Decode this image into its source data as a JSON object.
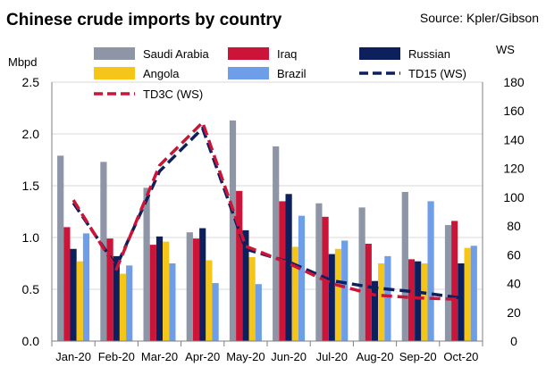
{
  "chart_data": {
    "type": "bar",
    "title": "Chinese crude imports by country",
    "source": "Source: Kpler/Gibson",
    "ylabel": "Mbpd",
    "y2label": "WS",
    "ylim": [
      0,
      2.5
    ],
    "y2lim": [
      0,
      180
    ],
    "yticks": [
      "0.0",
      "0.5",
      "1.0",
      "1.5",
      "2.0",
      "2.5"
    ],
    "y2ticks": [
      "0",
      "20",
      "40",
      "60",
      "80",
      "100",
      "120",
      "140",
      "160",
      "180"
    ],
    "grid": "horizontal",
    "legend_position": "top",
    "categories": [
      "Jan-20",
      "Feb-20",
      "Mar-20",
      "Apr-20",
      "May-20",
      "Jun-20",
      "Jul-20",
      "Aug-20",
      "Sep-20",
      "Oct-20"
    ],
    "series": [
      {
        "name": "Saudi Arabia",
        "color": "#8d95a6",
        "values": [
          1.79,
          1.73,
          1.48,
          1.05,
          2.13,
          1.88,
          1.33,
          1.29,
          1.44,
          1.12
        ]
      },
      {
        "name": "Iraq",
        "color": "#cc1439",
        "values": [
          1.1,
          0.99,
          0.93,
          0.99,
          1.45,
          1.35,
          1.2,
          0.94,
          0.79,
          1.16
        ]
      },
      {
        "name": "Russian",
        "color": "#0d1f5c",
        "values": [
          0.89,
          0.82,
          1.01,
          1.09,
          1.07,
          1.42,
          0.84,
          0.58,
          0.77,
          0.75
        ]
      },
      {
        "name": "Angola",
        "color": "#f5c518",
        "values": [
          0.77,
          0.65,
          0.96,
          0.78,
          0.81,
          0.91,
          0.89,
          0.75,
          0.75,
          0.9
        ]
      },
      {
        "name": "Brazil",
        "color": "#6f9ee8",
        "values": [
          1.04,
          0.73,
          0.75,
          0.56,
          0.55,
          1.21,
          0.97,
          0.82,
          1.35,
          0.92
        ]
      }
    ],
    "lines": [
      {
        "name": "TD15 (WS)",
        "color": "#0d1f5c",
        "axis": "right",
        "values": [
          96,
          52,
          118,
          148,
          64,
          55,
          42,
          37,
          34,
          30
        ]
      },
      {
        "name": "TD3C (WS)",
        "color": "#cc1439",
        "axis": "right",
        "values": [
          98,
          50,
          122,
          152,
          66,
          54,
          40,
          32,
          30,
          29
        ]
      }
    ]
  }
}
